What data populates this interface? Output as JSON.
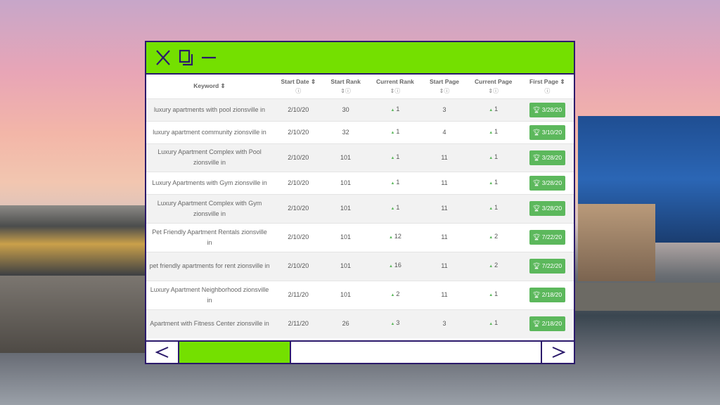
{
  "colors": {
    "accent": "#74e000",
    "border": "#2b1a6b",
    "badge": "#5cb85c"
  },
  "window": {
    "icons": [
      "close-icon",
      "copy-icon",
      "minimize-icon"
    ]
  },
  "table": {
    "headers": [
      {
        "label": "Keyword ⇕",
        "help": ""
      },
      {
        "label": "Start Date ⇕",
        "help": "ⓘ"
      },
      {
        "label": "Start Rank",
        "help": "⇕ⓘ"
      },
      {
        "label": "Current Rank",
        "help": "⇕ⓘ"
      },
      {
        "label": "Start Page",
        "help": "⇕ⓘ"
      },
      {
        "label": "Current Page",
        "help": "⇕ⓘ"
      },
      {
        "label": "First Page ⇕",
        "help": "ⓘ"
      }
    ],
    "rows": [
      {
        "keyword": "luxury apartments with pool zionsville in",
        "start_date": "2/10/20",
        "start_rank": "30",
        "current_rank": "1",
        "start_page": "3",
        "current_page": "1",
        "first_page": "3/28/20"
      },
      {
        "keyword": "luxury apartment community zionsville in",
        "start_date": "2/10/20",
        "start_rank": "32",
        "current_rank": "1",
        "start_page": "4",
        "current_page": "1",
        "first_page": "3/10/20"
      },
      {
        "keyword": "Luxury Apartment Complex with Pool zionsville in",
        "start_date": "2/10/20",
        "start_rank": "101",
        "current_rank": "1",
        "start_page": "11",
        "current_page": "1",
        "first_page": "3/28/20"
      },
      {
        "keyword": "Luxury Apartments with Gym zionsville in",
        "start_date": "2/10/20",
        "start_rank": "101",
        "current_rank": "1",
        "start_page": "11",
        "current_page": "1",
        "first_page": "3/28/20"
      },
      {
        "keyword": "Luxury Apartment Complex with Gym zionsville in",
        "start_date": "2/10/20",
        "start_rank": "101",
        "current_rank": "1",
        "start_page": "11",
        "current_page": "1",
        "first_page": "3/28/20"
      },
      {
        "keyword": "Pet Friendly Apartment Rentals zionsville in",
        "start_date": "2/10/20",
        "start_rank": "101",
        "current_rank": "12",
        "start_page": "11",
        "current_page": "2",
        "first_page": "7/22/20"
      },
      {
        "keyword": "pet friendly apartments for rent zionsville in",
        "start_date": "2/10/20",
        "start_rank": "101",
        "current_rank": "16",
        "start_page": "11",
        "current_page": "2",
        "first_page": "7/22/20"
      },
      {
        "keyword": "Luxury Apartment Neighborhood zionsville in",
        "start_date": "2/11/20",
        "start_rank": "101",
        "current_rank": "2",
        "start_page": "11",
        "current_page": "1",
        "first_page": "2/18/20"
      },
      {
        "keyword": "Apartment with Fitness Center zionsville in",
        "start_date": "2/11/20",
        "start_rank": "26",
        "current_rank": "3",
        "start_page": "3",
        "current_page": "1",
        "first_page": "2/18/20"
      }
    ]
  },
  "scrollbar": {
    "position_percent": 0,
    "visible_fraction": 0.31
  }
}
